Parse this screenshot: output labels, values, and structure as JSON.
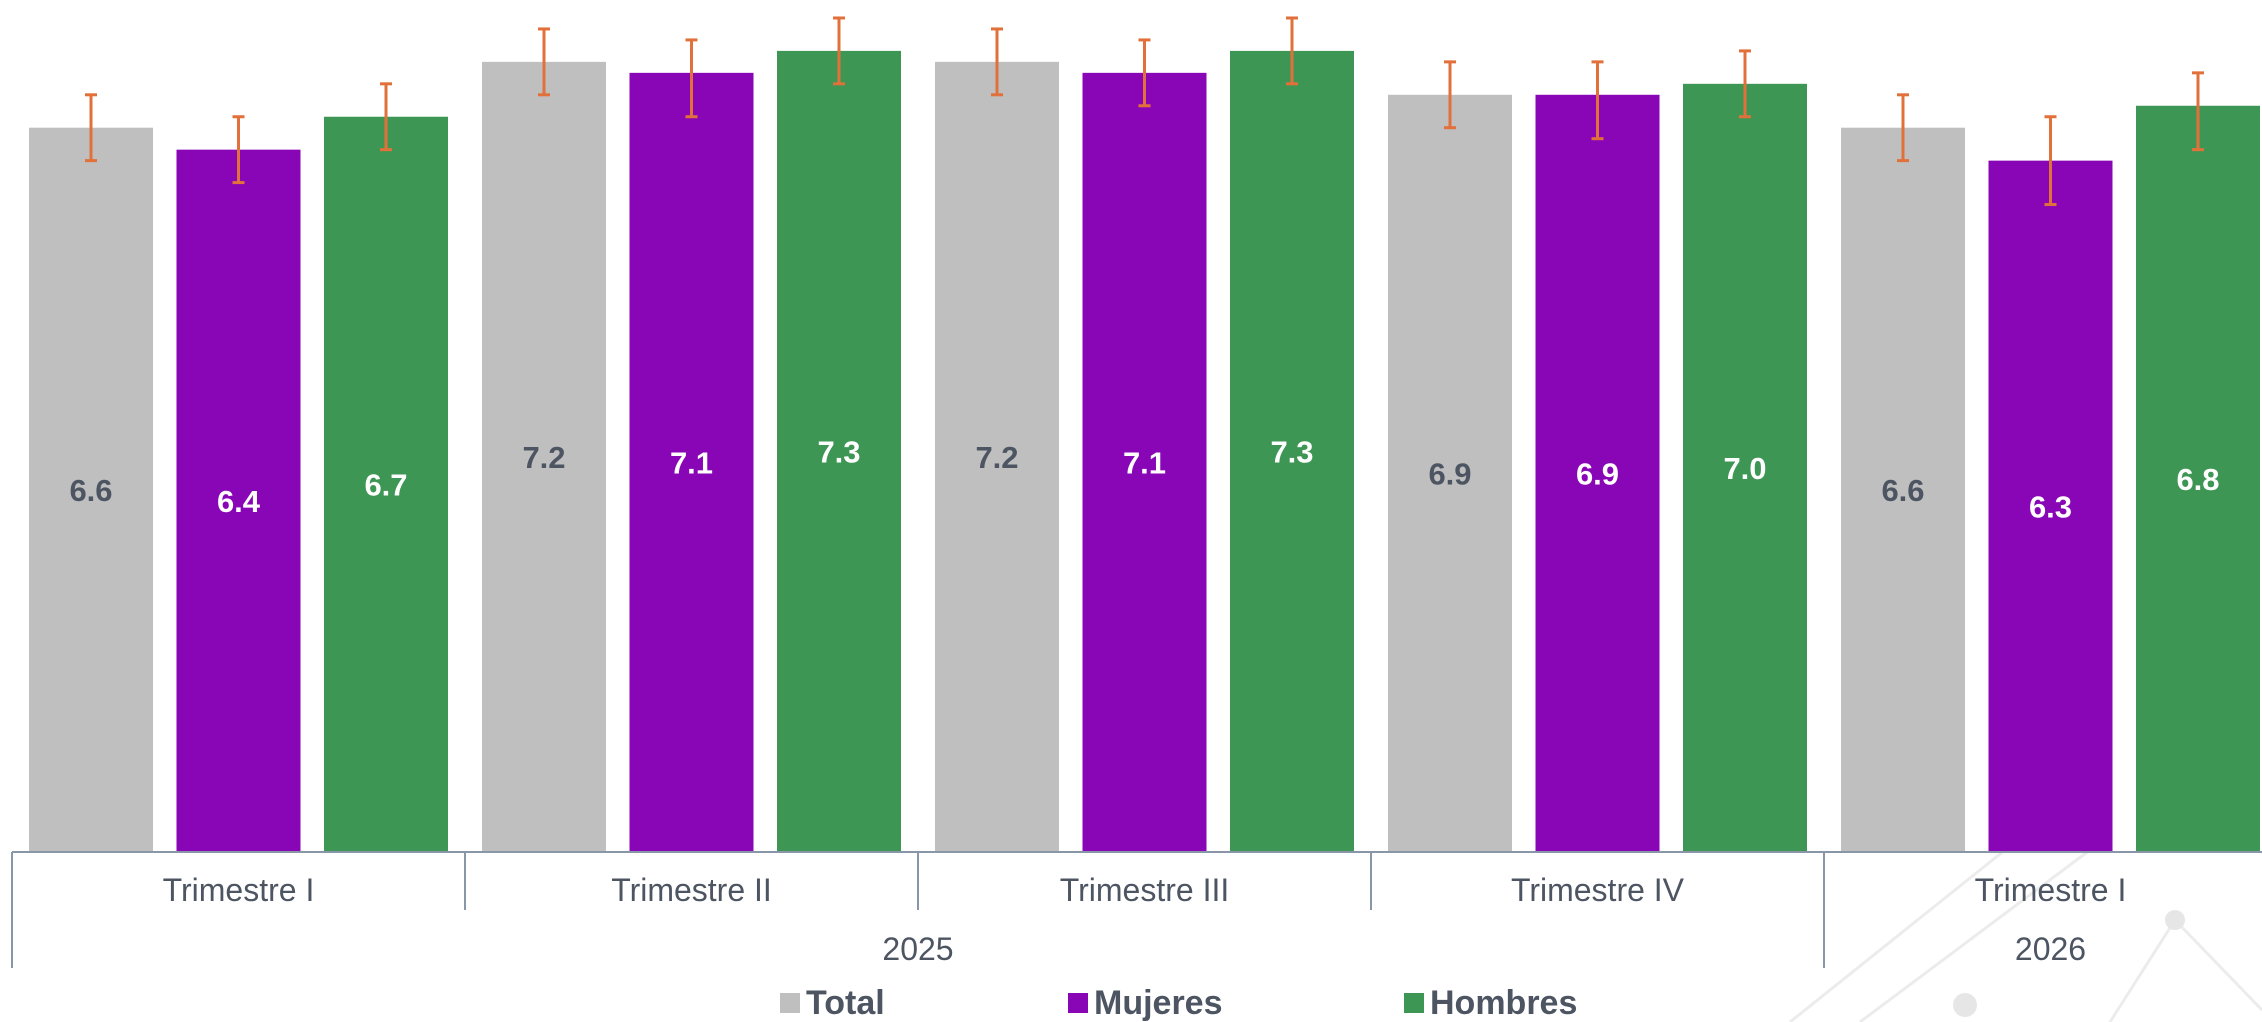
{
  "chart_data": {
    "type": "bar",
    "categories": [
      {
        "quarter": "Trimestre I",
        "year": "2025"
      },
      {
        "quarter": "Trimestre II",
        "year": "2025"
      },
      {
        "quarter": "Trimestre III",
        "year": "2025"
      },
      {
        "quarter": "Trimestre IV",
        "year": "2025"
      },
      {
        "quarter": "Trimestre I",
        "year": "2026"
      }
    ],
    "years": [
      {
        "label": "2025",
        "span": [
          0,
          3
        ]
      },
      {
        "label": "2026",
        "span": [
          4,
          4
        ]
      }
    ],
    "series": [
      {
        "name": "Total",
        "color": "#bfbfbf",
        "label_color": "#4d5562",
        "values": [
          6.6,
          7.2,
          7.2,
          6.9,
          6.6
        ],
        "error_low": [
          6.3,
          6.9,
          6.9,
          6.6,
          6.3
        ],
        "error_high": [
          6.9,
          7.5,
          7.5,
          7.2,
          6.9
        ]
      },
      {
        "name": "Mujeres",
        "color": "#8806b5",
        "label_color": "#ffffff",
        "values": [
          6.4,
          7.1,
          7.1,
          6.9,
          6.3
        ],
        "error_low": [
          6.1,
          6.7,
          6.8,
          6.5,
          5.9
        ],
        "error_high": [
          6.7,
          7.4,
          7.4,
          7.2,
          6.7
        ]
      },
      {
        "name": "Hombres",
        "color": "#3d9653",
        "label_color": "#ffffff",
        "values": [
          6.7,
          7.3,
          7.3,
          7.0,
          6.8
        ],
        "error_low": [
          6.4,
          7.0,
          7.0,
          6.7,
          6.4
        ],
        "error_high": [
          7.0,
          7.6,
          7.6,
          7.3,
          7.1
        ]
      }
    ],
    "error_bar_color": "#e2703a",
    "ylim": [
      0,
      7.7
    ],
    "legend": {
      "position": "bottom"
    },
    "axis_color": "#8896a8",
    "tick_label_color": "#4d5562"
  }
}
